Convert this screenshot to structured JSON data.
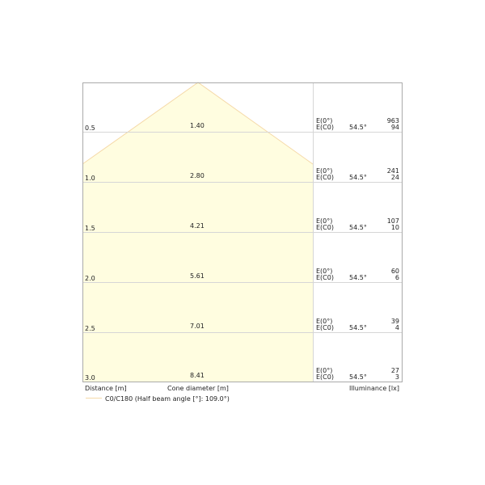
{
  "rows": [
    {
      "distance": "0.5",
      "diameter": "1.40",
      "e0_label": "E(0°)",
      "ec0_label": "E(C0)",
      "angle": "54.5°",
      "e0": "963",
      "ec0": "94"
    },
    {
      "distance": "1.0",
      "diameter": "2.80",
      "e0_label": "E(0°)",
      "ec0_label": "E(C0)",
      "angle": "54.5°",
      "e0": "241",
      "ec0": "24"
    },
    {
      "distance": "1.5",
      "diameter": "4.21",
      "e0_label": "E(0°)",
      "ec0_label": "E(C0)",
      "angle": "54.5°",
      "e0": "107",
      "ec0": "10"
    },
    {
      "distance": "2.0",
      "diameter": "5.61",
      "e0_label": "E(0°)",
      "ec0_label": "E(C0)",
      "angle": "54.5°",
      "e0": "60",
      "ec0": "6"
    },
    {
      "distance": "2.5",
      "diameter": "7.01",
      "e0_label": "E(0°)",
      "ec0_label": "E(C0)",
      "angle": "54.5°",
      "e0": "39",
      "ec0": "4"
    },
    {
      "distance": "3.0",
      "diameter": "8.41",
      "e0_label": "E(0°)",
      "ec0_label": "E(C0)",
      "angle": "54.5°",
      "e0": "27",
      "ec0": "3"
    }
  ],
  "labels": {
    "distance": "Distance [m]",
    "diameter": "Cone diameter [m]",
    "illuminance": "Illuminance [lx]"
  },
  "legend": {
    "label": "C0/C180 (Half beam angle [°]: 109.0°)",
    "color": "#f5d9a8"
  },
  "colors": {
    "cone_fill": "#fffde0",
    "cone_stroke": "#f5d9a8",
    "grid": "#d0d0d0"
  }
}
